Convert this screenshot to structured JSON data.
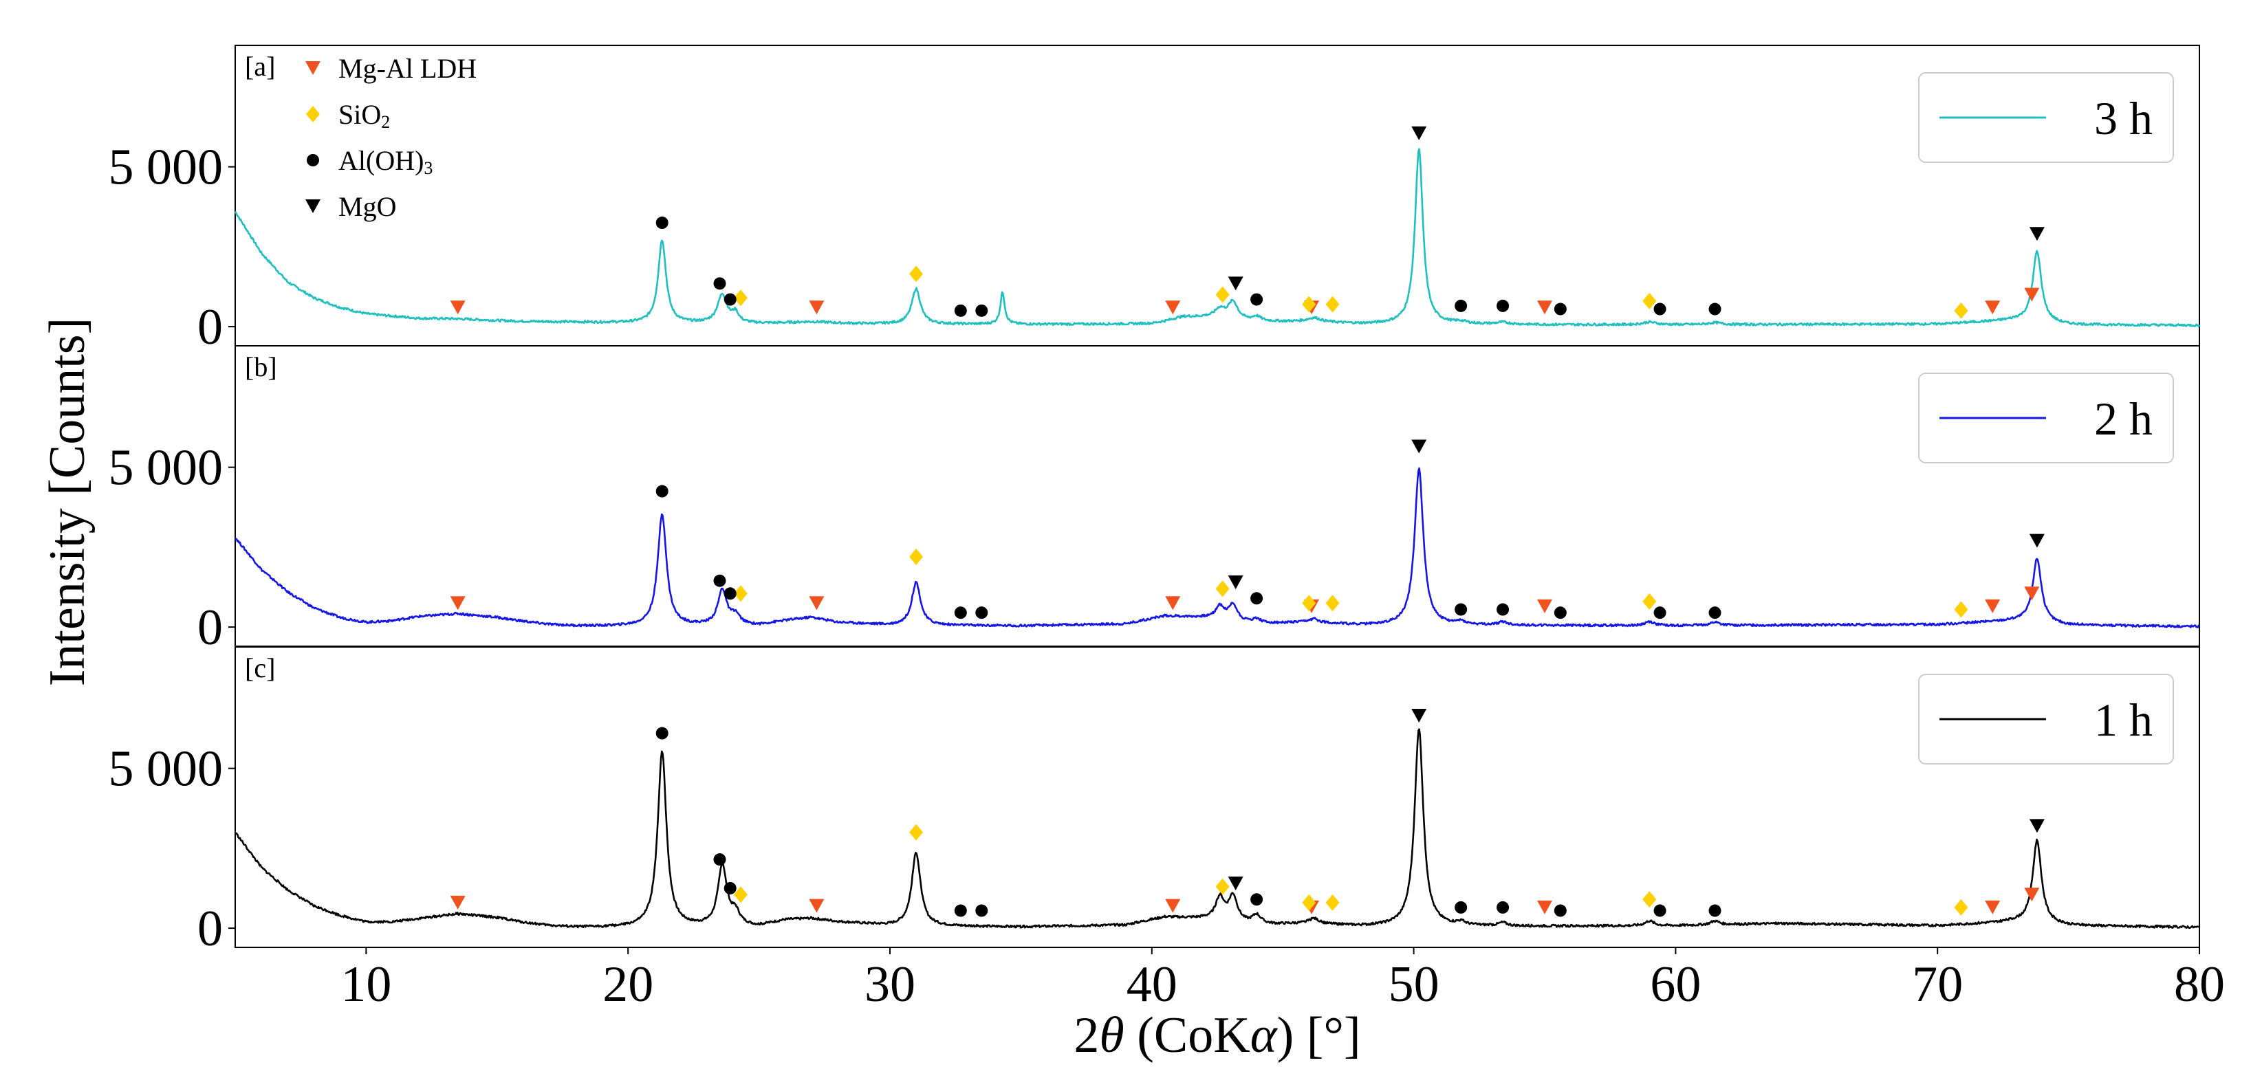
{
  "chart_data": {
    "type": "line",
    "xlabel_parts": [
      "2",
      "θ",
      " (CoK",
      "α",
      ") [°]"
    ],
    "ylabel": "Intensity [Counts]",
    "xlim": [
      5,
      80
    ],
    "ylim": [
      -600,
      8800
    ],
    "x_ticks": [
      10,
      20,
      30,
      40,
      50,
      60,
      70,
      80
    ],
    "x_tick_labels": [
      "10",
      "20",
      "30",
      "40",
      "50",
      "60",
      "70",
      "80"
    ],
    "y_ticks": [
      0,
      5000
    ],
    "y_tick_labels": [
      "0",
      "5 000"
    ],
    "marker_key": [
      {
        "id": "ldh",
        "label": "Mg-Al LDH",
        "shape": "triangle-down",
        "color": "#f0521f"
      },
      {
        "id": "sio2",
        "label": "SiO",
        "sub": "2",
        "shape": "diamond",
        "color": "#ffd000"
      },
      {
        "id": "aloh3",
        "label": "Al(OH)",
        "sub": "3",
        "shape": "circle",
        "color": "#000000"
      },
      {
        "id": "mgo",
        "label": "MgO",
        "shape": "triangle-down",
        "color": "#000000"
      }
    ],
    "series": [
      {
        "name": "3 h",
        "tag": "[a]",
        "color": "#1fbfbf",
        "background": [
          [
            5,
            3600
          ],
          [
            6,
            2300
          ],
          [
            7,
            1400
          ],
          [
            8,
            900
          ],
          [
            9,
            600
          ],
          [
            10,
            400
          ],
          [
            12,
            250
          ],
          [
            14,
            200
          ],
          [
            16,
            160
          ],
          [
            18,
            140
          ],
          [
            20,
            120
          ],
          [
            25,
            90
          ],
          [
            30,
            80
          ],
          [
            35,
            70
          ],
          [
            40,
            80
          ],
          [
            42,
            250
          ],
          [
            44,
            150
          ],
          [
            46,
            150
          ],
          [
            48,
            80
          ],
          [
            55,
            60
          ],
          [
            60,
            60
          ],
          [
            70,
            80
          ],
          [
            73,
            200
          ],
          [
            75,
            60
          ],
          [
            80,
            40
          ]
        ],
        "peaks": [
          [
            13.5,
            30,
            1.2
          ],
          [
            21.3,
            2600,
            0.18
          ],
          [
            23.6,
            900,
            0.22
          ],
          [
            24.1,
            300,
            0.15
          ],
          [
            27,
            60,
            1.0
          ],
          [
            31.0,
            1100,
            0.2
          ],
          [
            34.3,
            1000,
            0.1
          ],
          [
            41.2,
            120,
            0.6
          ],
          [
            42.6,
            300,
            0.25
          ],
          [
            43.1,
            550,
            0.22
          ],
          [
            44,
            150,
            0.2
          ],
          [
            46.2,
            120,
            0.3
          ],
          [
            50.2,
            5500,
            0.18
          ],
          [
            51.8,
            60,
            0.3
          ],
          [
            53.4,
            60,
            0.3
          ],
          [
            59,
            80,
            0.3
          ],
          [
            61.5,
            60,
            0.3
          ],
          [
            73.8,
            2200,
            0.2
          ]
        ],
        "peak_markers": [
          {
            "shape": "ldh",
            "points": [
              [
                13.5,
                600
              ],
              [
                27.2,
                600
              ],
              [
                40.8,
                600
              ],
              [
                46.1,
                600
              ],
              [
                55.0,
                600
              ],
              [
                72.1,
                600
              ],
              [
                73.6,
                1000
              ]
            ]
          },
          {
            "shape": "sio2",
            "points": [
              [
                24.3,
                900
              ],
              [
                31.0,
                1650
              ],
              [
                42.7,
                1000
              ],
              [
                46.0,
                700
              ],
              [
                46.9,
                700
              ],
              [
                59.0,
                800
              ],
              [
                70.9,
                500
              ]
            ]
          },
          {
            "shape": "aloh3",
            "points": [
              [
                21.3,
                3250
              ],
              [
                23.5,
                1350
              ],
              [
                23.9,
                850
              ],
              [
                32.7,
                500
              ],
              [
                33.5,
                500
              ],
              [
                44.0,
                850
              ],
              [
                51.8,
                650
              ],
              [
                53.4,
                650
              ],
              [
                55.6,
                550
              ],
              [
                59.4,
                550
              ],
              [
                61.5,
                550
              ]
            ]
          },
          {
            "shape": "mgo",
            "points": [
              [
                43.2,
                1350
              ],
              [
                50.2,
                6050
              ],
              [
                73.8,
                2900
              ]
            ]
          }
        ]
      },
      {
        "name": "2 h",
        "tag": "[b]",
        "color": "#1515e6",
        "background": [
          [
            5,
            2800
          ],
          [
            6,
            1800
          ],
          [
            7,
            1100
          ],
          [
            8,
            600
          ],
          [
            9,
            300
          ],
          [
            10,
            150
          ],
          [
            11,
            200
          ],
          [
            12,
            330
          ],
          [
            13.5,
            420
          ],
          [
            15,
            300
          ],
          [
            16,
            180
          ],
          [
            17,
            80
          ],
          [
            18,
            40
          ],
          [
            19,
            30
          ],
          [
            20,
            30
          ],
          [
            25,
            60
          ],
          [
            26,
            200
          ],
          [
            27,
            300
          ],
          [
            28,
            150
          ],
          [
            30,
            60
          ],
          [
            35,
            40
          ],
          [
            39,
            100
          ],
          [
            40.5,
            350
          ],
          [
            42,
            300
          ],
          [
            44,
            100
          ],
          [
            46,
            150
          ],
          [
            48,
            60
          ],
          [
            55,
            50
          ],
          [
            60,
            50
          ],
          [
            70,
            80
          ],
          [
            73,
            200
          ],
          [
            75,
            60
          ],
          [
            80,
            20
          ]
        ],
        "peaks": [
          [
            21.3,
            3500
          ],
          [
            23.6,
            1100
          ],
          [
            24.1,
            300
          ],
          [
            31.0,
            1350
          ],
          [
            42.6,
            400
          ],
          [
            43.1,
            500
          ],
          [
            44,
            150
          ],
          [
            46.2,
            100
          ],
          [
            50.2,
            4900
          ],
          [
            51.8,
            100
          ],
          [
            53.4,
            100
          ],
          [
            59,
            120
          ],
          [
            61.5,
            100
          ],
          [
            73.8,
            2000
          ]
        ],
        "peak_markers": [
          {
            "shape": "ldh",
            "points": [
              [
                13.5,
                750
              ],
              [
                27.2,
                750
              ],
              [
                40.8,
                750
              ],
              [
                46.1,
                650
              ],
              [
                55.0,
                650
              ],
              [
                72.1,
                650
              ],
              [
                73.6,
                1050
              ]
            ]
          },
          {
            "shape": "sio2",
            "points": [
              [
                24.3,
                1050
              ],
              [
                31.0,
                2200
              ],
              [
                42.7,
                1200
              ],
              [
                46.0,
                750
              ],
              [
                46.9,
                750
              ],
              [
                59.0,
                800
              ],
              [
                70.9,
                550
              ]
            ]
          },
          {
            "shape": "aloh3",
            "points": [
              [
                21.3,
                4250
              ],
              [
                23.5,
                1450
              ],
              [
                23.9,
                1050
              ],
              [
                32.7,
                450
              ],
              [
                33.5,
                450
              ],
              [
                44.0,
                900
              ],
              [
                51.8,
                550
              ],
              [
                53.4,
                550
              ],
              [
                55.6,
                450
              ],
              [
                59.4,
                450
              ],
              [
                61.5,
                450
              ]
            ]
          },
          {
            "shape": "mgo",
            "points": [
              [
                43.2,
                1400
              ],
              [
                50.2,
                5650
              ],
              [
                73.8,
                2700
              ]
            ]
          }
        ]
      },
      {
        "name": "1 h",
        "tag": "[c]",
        "color": "#000000",
        "background": [
          [
            5,
            3000
          ],
          [
            6,
            1900
          ],
          [
            7,
            1200
          ],
          [
            8,
            700
          ],
          [
            9,
            400
          ],
          [
            10,
            200
          ],
          [
            11,
            200
          ],
          [
            12,
            300
          ],
          [
            13.5,
            450
          ],
          [
            15,
            330
          ],
          [
            16,
            180
          ],
          [
            17,
            80
          ],
          [
            18,
            30
          ],
          [
            20,
            20
          ],
          [
            25,
            60
          ],
          [
            26,
            250
          ],
          [
            27,
            300
          ],
          [
            28,
            200
          ],
          [
            30,
            80
          ],
          [
            35,
            40
          ],
          [
            39,
            100
          ],
          [
            40.5,
            350
          ],
          [
            42,
            300
          ],
          [
            44,
            100
          ],
          [
            46,
            150
          ],
          [
            48,
            60
          ],
          [
            55,
            60
          ],
          [
            60,
            80
          ],
          [
            64,
            150
          ],
          [
            70,
            80
          ],
          [
            73,
            200
          ],
          [
            75,
            80
          ],
          [
            80,
            30
          ]
        ],
        "peaks": [
          [
            21.3,
            5500
          ],
          [
            23.6,
            1900
          ],
          [
            24.1,
            400
          ],
          [
            31.0,
            2300
          ],
          [
            42.6,
            700
          ],
          [
            43.1,
            800
          ],
          [
            44,
            300
          ],
          [
            46.2,
            150
          ],
          [
            50.2,
            6200
          ],
          [
            51.8,
            100
          ],
          [
            53.4,
            100
          ],
          [
            59,
            150
          ],
          [
            61.5,
            120
          ],
          [
            73.8,
            2600
          ]
        ],
        "peak_markers": [
          {
            "shape": "ldh",
            "points": [
              [
                13.5,
                800
              ],
              [
                27.2,
                700
              ],
              [
                40.8,
                700
              ],
              [
                46.1,
                650
              ],
              [
                55.0,
                650
              ],
              [
                72.1,
                650
              ],
              [
                73.6,
                1050
              ]
            ]
          },
          {
            "shape": "sio2",
            "points": [
              [
                24.3,
                1050
              ],
              [
                31.0,
                3000
              ],
              [
                42.7,
                1300
              ],
              [
                46.0,
                800
              ],
              [
                46.9,
                800
              ],
              [
                59.0,
                900
              ],
              [
                70.9,
                650
              ]
            ]
          },
          {
            "shape": "aloh3",
            "points": [
              [
                21.3,
                6100
              ],
              [
                23.5,
                2150
              ],
              [
                23.9,
                1250
              ],
              [
                32.7,
                550
              ],
              [
                33.5,
                550
              ],
              [
                44.0,
                900
              ],
              [
                51.8,
                650
              ],
              [
                53.4,
                650
              ],
              [
                55.6,
                550
              ],
              [
                59.4,
                550
              ],
              [
                61.5,
                550
              ]
            ]
          },
          {
            "shape": "mgo",
            "points": [
              [
                43.2,
                1400
              ],
              [
                50.2,
                6650
              ],
              [
                73.8,
                3200
              ]
            ]
          }
        ]
      }
    ]
  }
}
